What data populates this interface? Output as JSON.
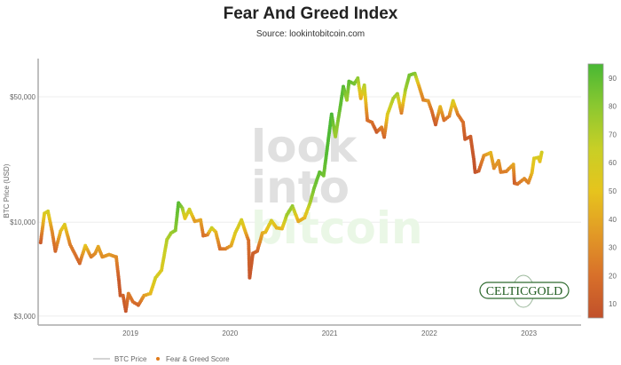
{
  "title": "Fear And Greed Index",
  "subtitle": "Source: lookintobitcoin.com",
  "watermark": [
    "look",
    "into",
    "bitcoin"
  ],
  "logo_text": "CELTICGOLD",
  "chart_data": {
    "type": "scatter",
    "title": "Fear And Greed Index",
    "subtitle": "Source: lookintobitcoin.com",
    "xlabel": "",
    "ylabel": "BTC Price (USD)",
    "y_scale": "log",
    "ylim": [
      2640,
      81600
    ],
    "y_ticks": [
      {
        "value": 3000,
        "label": "$3,000"
      },
      {
        "value": 10000,
        "label": "$10,000"
      },
      {
        "value": 50000,
        "label": "$50,000"
      }
    ],
    "x_ticks": [
      "2019",
      "2020",
      "2021",
      "2022",
      "2023"
    ],
    "grid": true,
    "legend": {
      "position": "bottom",
      "entries": [
        "BTC Price",
        "Fear & Greed Score"
      ]
    },
    "colorbar": {
      "range": [
        5,
        95
      ],
      "ticks": [
        10,
        20,
        30,
        40,
        50,
        60,
        70,
        80,
        90
      ],
      "colors": [
        "#c1502b",
        "#d8702a",
        "#e29a26",
        "#e6c41d",
        "#c8cf26",
        "#8cc830",
        "#48b834"
      ]
    },
    "series": [
      {
        "name": "BTC Price",
        "type": "line",
        "color": "#c8c8c8"
      },
      {
        "name": "Fear & Greed Score",
        "type": "scatter",
        "color": "#e07b1a"
      }
    ],
    "points": [
      [
        "2018-02-06",
        7700,
        10
      ],
      [
        "2018-02-20",
        11200,
        55
      ],
      [
        "2018-03-05",
        11500,
        60
      ],
      [
        "2018-03-20",
        8900,
        30
      ],
      [
        "2018-04-01",
        6900,
        15
      ],
      [
        "2018-04-20",
        8900,
        45
      ],
      [
        "2018-05-05",
        9700,
        55
      ],
      [
        "2018-05-25",
        7500,
        25
      ],
      [
        "2018-06-15",
        6500,
        20
      ],
      [
        "2018-06-29",
        5900,
        15
      ],
      [
        "2018-07-20",
        7400,
        50
      ],
      [
        "2018-08-10",
        6400,
        25
      ],
      [
        "2018-08-25",
        6700,
        30
      ],
      [
        "2018-09-05",
        7300,
        40
      ],
      [
        "2018-09-20",
        6400,
        30
      ],
      [
        "2018-10-15",
        6600,
        35
      ],
      [
        "2018-11-10",
        6400,
        30
      ],
      [
        "2018-11-20",
        4700,
        10
      ],
      [
        "2018-11-25",
        3900,
        10
      ],
      [
        "2018-12-05",
        3900,
        15
      ],
      [
        "2018-12-15",
        3200,
        8
      ],
      [
        "2018-12-25",
        4000,
        25
      ],
      [
        "2019-01-10",
        3600,
        20
      ],
      [
        "2019-01-30",
        3450,
        15
      ],
      [
        "2019-02-20",
        3900,
        35
      ],
      [
        "2019-03-15",
        4000,
        45
      ],
      [
        "2019-04-03",
        4900,
        60
      ],
      [
        "2019-04-25",
        5400,
        55
      ],
      [
        "2019-05-15",
        8000,
        70
      ],
      [
        "2019-05-30",
        8700,
        75
      ],
      [
        "2019-06-15",
        9000,
        80
      ],
      [
        "2019-06-26",
        12800,
        92
      ],
      [
        "2019-07-10",
        12000,
        80
      ],
      [
        "2019-07-20",
        10500,
        50
      ],
      [
        "2019-08-05",
        11800,
        65
      ],
      [
        "2019-08-25",
        10100,
        35
      ],
      [
        "2019-09-15",
        10300,
        40
      ],
      [
        "2019-09-25",
        8400,
        20
      ],
      [
        "2019-10-10",
        8500,
        25
      ],
      [
        "2019-10-26",
        9300,
        65
      ],
      [
        "2019-11-10",
        8800,
        45
      ],
      [
        "2019-11-25",
        7100,
        20
      ],
      [
        "2019-12-15",
        7100,
        25
      ],
      [
        "2020-01-05",
        7400,
        38
      ],
      [
        "2020-01-20",
        8700,
        55
      ],
      [
        "2020-02-12",
        10300,
        60
      ],
      [
        "2020-02-28",
        8700,
        40
      ],
      [
        "2020-03-09",
        7900,
        20
      ],
      [
        "2020-03-13",
        4900,
        8
      ],
      [
        "2020-03-25",
        6700,
        12
      ],
      [
        "2020-04-10",
        6900,
        15
      ],
      [
        "2020-04-29",
        8700,
        40
      ],
      [
        "2020-05-10",
        8800,
        45
      ],
      [
        "2020-06-01",
        10200,
        58
      ],
      [
        "2020-06-20",
        9300,
        45
      ],
      [
        "2020-07-10",
        9200,
        45
      ],
      [
        "2020-07-28",
        11000,
        75
      ],
      [
        "2020-08-17",
        12300,
        78
      ],
      [
        "2020-09-08",
        10100,
        40
      ],
      [
        "2020-10-01",
        10600,
        45
      ],
      [
        "2020-10-21",
        12800,
        72
      ],
      [
        "2020-11-05",
        15500,
        85
      ],
      [
        "2020-11-25",
        19000,
        90
      ],
      [
        "2020-12-10",
        18200,
        85
      ],
      [
        "2020-12-20",
        23800,
        92
      ],
      [
        "2021-01-08",
        40000,
        95
      ],
      [
        "2021-01-22",
        30000,
        75
      ],
      [
        "2021-02-10",
        45000,
        90
      ],
      [
        "2021-02-20",
        57000,
        92
      ],
      [
        "2021-03-05",
        48000,
        75
      ],
      [
        "2021-03-13",
        61000,
        90
      ],
      [
        "2021-04-01",
        59000,
        85
      ],
      [
        "2021-04-14",
        63500,
        80
      ],
      [
        "2021-04-25",
        49000,
        40
      ],
      [
        "2021-05-08",
        58000,
        70
      ],
      [
        "2021-05-19",
        37000,
        20
      ],
      [
        "2021-06-05",
        36000,
        20
      ],
      [
        "2021-06-22",
        31800,
        10
      ],
      [
        "2021-07-10",
        33800,
        25
      ],
      [
        "2021-07-20",
        29800,
        15
      ],
      [
        "2021-08-01",
        40000,
        55
      ],
      [
        "2021-08-22",
        49000,
        72
      ],
      [
        "2021-09-06",
        52000,
        75
      ],
      [
        "2021-09-21",
        40700,
        25
      ],
      [
        "2021-10-06",
        55000,
        75
      ],
      [
        "2021-10-20",
        66000,
        85
      ],
      [
        "2021-11-09",
        67500,
        82
      ],
      [
        "2021-11-25",
        57000,
        40
      ],
      [
        "2021-12-10",
        48000,
        25
      ],
      [
        "2021-12-28",
        47500,
        35
      ],
      [
        "2022-01-10",
        41800,
        20
      ],
      [
        "2022-01-24",
        35000,
        10
      ],
      [
        "2022-02-10",
        44000,
        45
      ],
      [
        "2022-02-24",
        37000,
        20
      ],
      [
        "2022-03-15",
        39000,
        25
      ],
      [
        "2022-03-29",
        47500,
        60
      ],
      [
        "2022-04-15",
        40000,
        25
      ],
      [
        "2022-05-05",
        36000,
        20
      ],
      [
        "2022-05-12",
        29000,
        10
      ],
      [
        "2022-06-01",
        30000,
        12
      ],
      [
        "2022-06-13",
        22500,
        8
      ],
      [
        "2022-06-18",
        19000,
        6
      ],
      [
        "2022-07-01",
        19300,
        12
      ],
      [
        "2022-07-20",
        23500,
        30
      ],
      [
        "2022-08-14",
        24400,
        45
      ],
      [
        "2022-08-26",
        20000,
        30
      ],
      [
        "2022-09-12",
        22000,
        35
      ],
      [
        "2022-09-20",
        19000,
        25
      ],
      [
        "2022-10-10",
        19200,
        25
      ],
      [
        "2022-11-05",
        21000,
        40
      ],
      [
        "2022-11-09",
        16500,
        12
      ],
      [
        "2022-11-20",
        16300,
        20
      ],
      [
        "2022-12-15",
        17500,
        30
      ],
      [
        "2022-12-30",
        16600,
        25
      ],
      [
        "2023-01-12",
        18800,
        45
      ],
      [
        "2023-01-20",
        22700,
        55
      ],
      [
        "2023-02-05",
        23000,
        58
      ],
      [
        "2023-02-10",
        21800,
        48
      ],
      [
        "2023-02-17",
        24500,
        60
      ]
    ]
  }
}
